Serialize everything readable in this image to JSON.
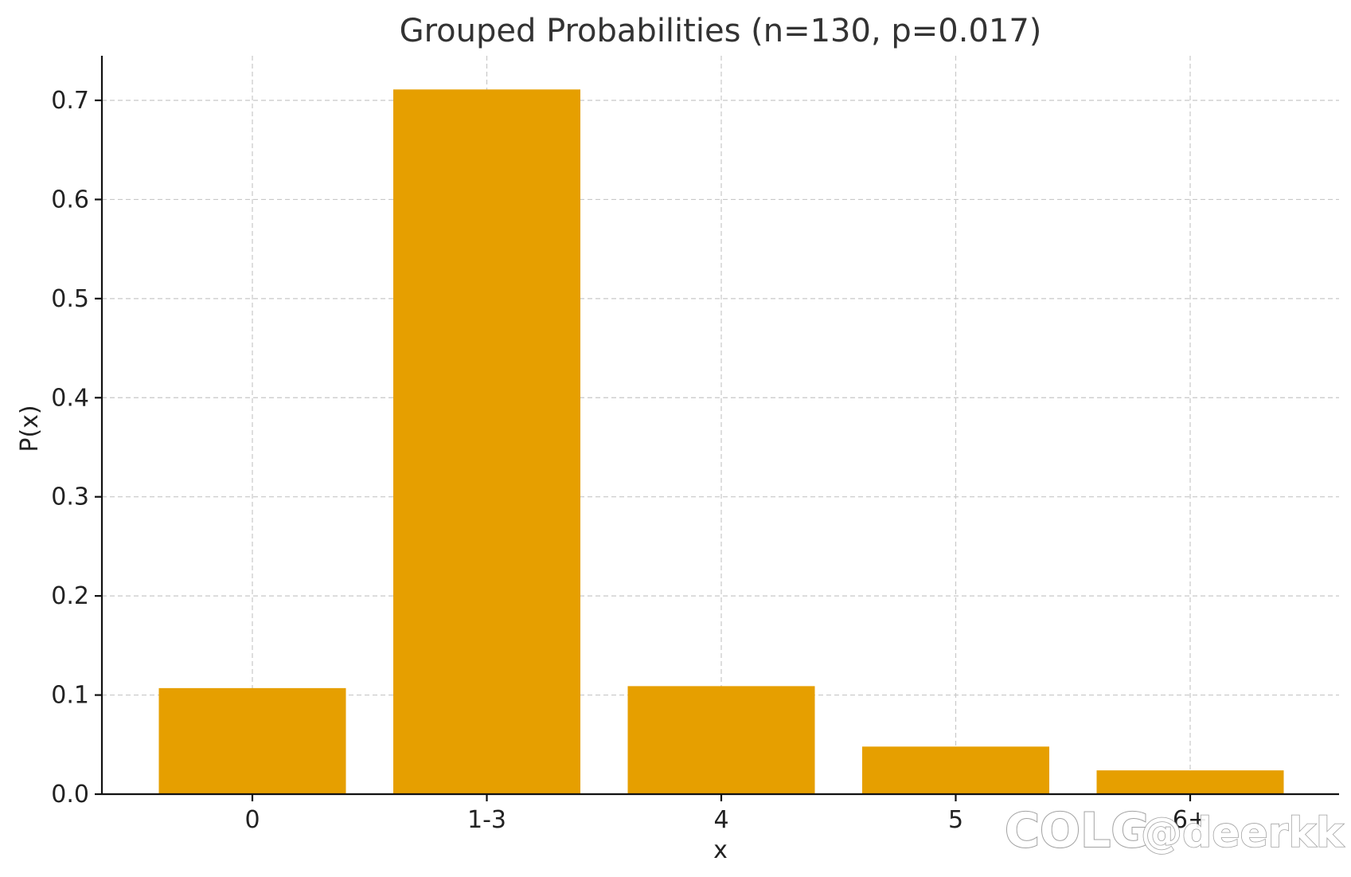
{
  "chart_data": {
    "type": "bar",
    "title": "Grouped Probabilities (n=130, p=0.017)",
    "xlabel": "x",
    "ylabel": "P(x)",
    "categories": [
      "0",
      "1-3",
      "4",
      "5",
      "6+"
    ],
    "values": [
      0.107,
      0.711,
      0.109,
      0.048,
      0.024
    ],
    "ylim": [
      0,
      0.745
    ],
    "yticks": [
      "0.0",
      "0.1",
      "0.2",
      "0.3",
      "0.4",
      "0.5",
      "0.6",
      "0.7"
    ],
    "grid": true,
    "bar_color": "#E69F00"
  },
  "watermark": {
    "logo": "COLG",
    "text": "@deerkk"
  }
}
